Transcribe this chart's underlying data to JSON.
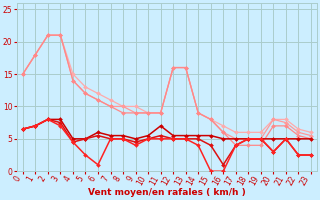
{
  "background_color": "#cceeff",
  "grid_color": "#aacccc",
  "xlabel": "Vent moyen/en rafales ( km/h )",
  "xlabel_color": "#cc0000",
  "ylabel_ticks": [
    0,
    5,
    10,
    15,
    20,
    25
  ],
  "xlim": [
    -0.5,
    23.5
  ],
  "ylim": [
    0,
    26
  ],
  "tick_color": "#cc0000",
  "lines": [
    {
      "x": [
        0,
        1,
        2,
        3,
        4,
        5,
        6,
        7,
        8,
        9,
        10,
        11,
        12,
        13,
        14,
        15,
        16,
        17,
        18,
        19,
        20,
        21,
        22,
        23
      ],
      "y": [
        15,
        18,
        21,
        21,
        15,
        13,
        12,
        11,
        10,
        10,
        9,
        9,
        16,
        16,
        9,
        8,
        7,
        6,
        6,
        6,
        8,
        8,
        6.5,
        6
      ],
      "color": "#ffaaaa",
      "lw": 0.9,
      "marker": "D",
      "ms": 2.0
    },
    {
      "x": [
        0,
        1,
        2,
        3,
        4,
        5,
        6,
        7,
        8,
        9,
        10,
        11,
        12,
        13,
        14,
        15,
        16,
        17,
        18,
        19,
        20,
        21,
        22,
        23
      ],
      "y": [
        15,
        18,
        21,
        21,
        14,
        12,
        11,
        10,
        10,
        9,
        9,
        9,
        16,
        16,
        9,
        8,
        6,
        5,
        5,
        5,
        8,
        7.5,
        6,
        5.5
      ],
      "color": "#ff9999",
      "lw": 0.9,
      "marker": "D",
      "ms": 2.0
    },
    {
      "x": [
        0,
        1,
        2,
        3,
        4,
        5,
        6,
        7,
        8,
        9,
        10,
        11,
        12,
        13,
        14,
        15,
        16,
        17,
        18,
        19,
        20,
        21,
        22,
        23
      ],
      "y": [
        15,
        18,
        21,
        21,
        14,
        12,
        11,
        10,
        9,
        9,
        9,
        9,
        16,
        16,
        9,
        8,
        6,
        4,
        4,
        4,
        7,
        7,
        5.5,
        5
      ],
      "color": "#ff8888",
      "lw": 0.9,
      "marker": "D",
      "ms": 2.0
    },
    {
      "x": [
        0,
        1,
        2,
        3,
        4,
        5,
        6,
        7,
        8,
        9,
        10,
        11,
        12,
        13,
        14,
        15,
        16,
        17,
        18,
        19,
        20,
        21,
        22,
        23
      ],
      "y": [
        6.5,
        7,
        8,
        8,
        5,
        5,
        6,
        5.5,
        5.5,
        5,
        5.5,
        7,
        5.5,
        5.5,
        5.5,
        5.5,
        5,
        5,
        5,
        5,
        5,
        5,
        5,
        5
      ],
      "color": "#cc0000",
      "lw": 1.1,
      "marker": "D",
      "ms": 2.0
    },
    {
      "x": [
        0,
        1,
        2,
        3,
        4,
        5,
        6,
        7,
        8,
        9,
        10,
        11,
        12,
        13,
        14,
        15,
        16,
        17,
        18,
        19,
        20,
        21,
        22,
        23
      ],
      "y": [
        6.5,
        7,
        8,
        7.5,
        4.5,
        5,
        5.5,
        5,
        5,
        4.5,
        5,
        5.5,
        5,
        5,
        5,
        4,
        1,
        4,
        5,
        5,
        3,
        5,
        2.5,
        2.5
      ],
      "color": "#dd1111",
      "lw": 1.1,
      "marker": "D",
      "ms": 2.0
    },
    {
      "x": [
        0,
        1,
        2,
        3,
        4,
        5,
        6,
        7,
        8,
        9,
        10,
        11,
        12,
        13,
        14,
        15,
        16,
        17,
        18,
        19,
        20,
        21,
        22,
        23
      ],
      "y": [
        6.5,
        7,
        8,
        7,
        4.5,
        2.5,
        1,
        5,
        5,
        4,
        5,
        5,
        5,
        5,
        4,
        0,
        0,
        4,
        5,
        5,
        3,
        5,
        2.5,
        2.5
      ],
      "color": "#ff2222",
      "lw": 1.1,
      "marker": "D",
      "ms": 2.0
    }
  ],
  "xtick_labels": [
    "0",
    "1",
    "2",
    "3",
    "4",
    "5",
    "6",
    "7",
    "8",
    "9",
    "10",
    "11",
    "12",
    "13",
    "14",
    "15",
    "16",
    "17",
    "18",
    "19",
    "20",
    "21",
    "22",
    "23"
  ],
  "tick_label_color": "#cc0000",
  "axis_label_fontsize": 6.5,
  "tick_fontsize": 5.5
}
